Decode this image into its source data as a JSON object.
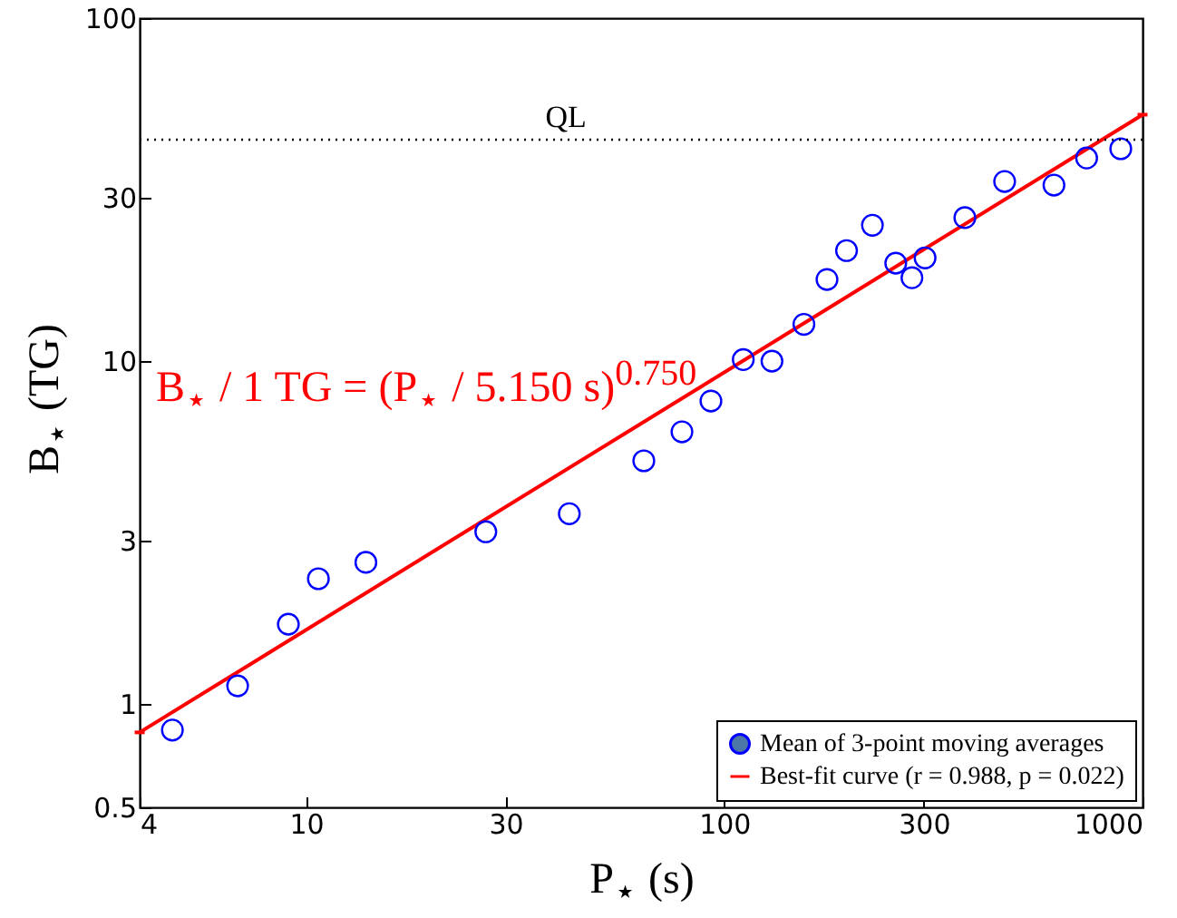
{
  "chart_data": {
    "type": "scatter",
    "xlabel": "P$_{⋆}$ (s)",
    "ylabel": "B$_{⋆}$ (TG)",
    "log": "xy",
    "grid": false,
    "legend": "bottom right",
    "xlim": [
      4,
      1000
    ],
    "xticks": [
      4,
      10,
      30,
      100,
      300,
      {
        "value": 1000,
        "label": "1000"
      }
    ],
    "ylim": [
      0.5,
      100
    ],
    "yticks": [
      0.5,
      1,
      3,
      10,
      30,
      100
    ],
    "series": [
      {
        "name": "Mean of 3-point moving averages",
        "type": "scatter",
        "marker": "circle",
        "color": "#0000ff",
        "x": [
          4.79,
          6.86,
          9.07,
          10.7,
          13.9,
          26.9,
          42.6,
          64.2,
          79.2,
          92.9,
          111,
          130,
          155,
          176,
          196,
          226,
          257,
          281,
          302,
          376,
          468,
          614,
          735,
          887
        ],
        "values": [
          0.84,
          1.13,
          1.71,
          2.32,
          2.59,
          3.18,
          3.59,
          5.12,
          6.22,
          7.65,
          10.1,
          10.0,
          12.8,
          17.3,
          21.0,
          24.9,
          19.3,
          17.5,
          20.0,
          26.2,
          33.4,
          32.6,
          39.1,
          41.6
        ]
      },
      {
        "name": "Best-fit curve (r = 0.988, p = 0.022)",
        "type": "line",
        "color": "#ff0000",
        "line_style": "solid",
        "x": [
          4,
          1000
        ],
        "values": [
          0.827,
          52.3
        ]
      }
    ],
    "ref_lines": [
      {
        "axis": "y",
        "value": 44.2,
        "label": "QL",
        "color": "#000000",
        "line_style": "dotted"
      }
    ],
    "annotations": [
      "B$_{⋆}$ / 1 TG = (P$_{⋆}$ / 5.150 s)$^{0.750}$"
    ]
  }
}
